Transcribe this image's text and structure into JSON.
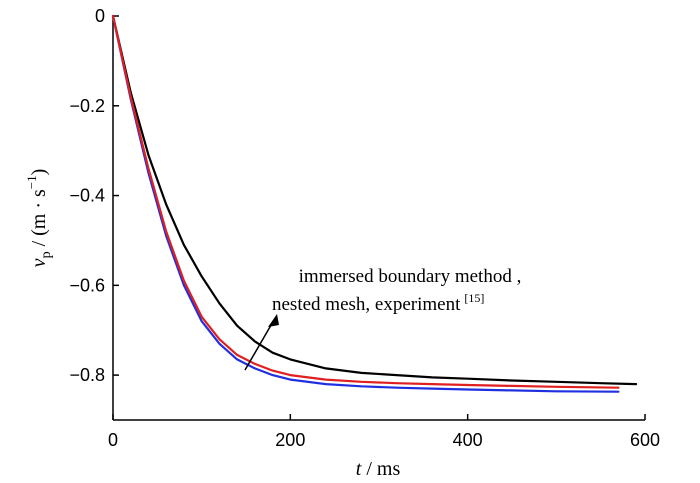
{
  "chart_data": {
    "type": "line",
    "xlabel": {
      "var": "t",
      "unit": " / ms"
    },
    "ylabel": {
      "var": "v",
      "sub": "p",
      "unit": " / (m · s",
      "sup": "−1",
      "close": ")"
    },
    "xlim": [
      0,
      600
    ],
    "ylim": [
      -0.9,
      0
    ],
    "xticks": [
      "0",
      "200",
      "400",
      "600"
    ],
    "yticks": [
      "0",
      "−0.2",
      "−0.4",
      "−0.6",
      "−0.8"
    ],
    "xtick_values": [
      0,
      200,
      400,
      600
    ],
    "ytick_values": [
      0,
      -0.2,
      -0.4,
      -0.6,
      -0.8
    ],
    "annotation": {
      "line1": "immersed boundary method ,",
      "line2": "nested mesh, experiment",
      "ref": "[15]"
    },
    "series": [
      {
        "color": "#000000",
        "x": [
          0,
          20,
          40,
          60,
          80,
          100,
          120,
          140,
          160,
          180,
          200,
          240,
          280,
          320,
          360,
          400,
          450,
          500,
          550,
          590
        ],
        "y": [
          0,
          -0.17,
          -0.31,
          -0.42,
          -0.51,
          -0.58,
          -0.64,
          -0.69,
          -0.725,
          -0.75,
          -0.765,
          -0.785,
          -0.795,
          -0.8,
          -0.805,
          -0.808,
          -0.812,
          -0.815,
          -0.818,
          -0.82
        ]
      },
      {
        "color": "#e02020",
        "x": [
          0,
          20,
          40,
          60,
          80,
          100,
          120,
          140,
          160,
          180,
          200,
          240,
          280,
          320,
          360,
          400,
          450,
          500,
          570
        ],
        "y": [
          0,
          -0.18,
          -0.34,
          -0.48,
          -0.59,
          -0.67,
          -0.72,
          -0.755,
          -0.775,
          -0.79,
          -0.8,
          -0.81,
          -0.815,
          -0.818,
          -0.82,
          -0.822,
          -0.824,
          -0.826,
          -0.828
        ]
      },
      {
        "color": "#2030e0",
        "x": [
          0,
          20,
          40,
          60,
          80,
          100,
          120,
          140,
          160,
          180,
          200,
          240,
          280,
          320,
          360,
          400,
          450,
          500,
          570
        ],
        "y": [
          0,
          -0.185,
          -0.35,
          -0.49,
          -0.6,
          -0.68,
          -0.73,
          -0.765,
          -0.785,
          -0.8,
          -0.81,
          -0.82,
          -0.825,
          -0.828,
          -0.83,
          -0.832,
          -0.834,
          -0.836,
          -0.837
        ]
      }
    ]
  }
}
